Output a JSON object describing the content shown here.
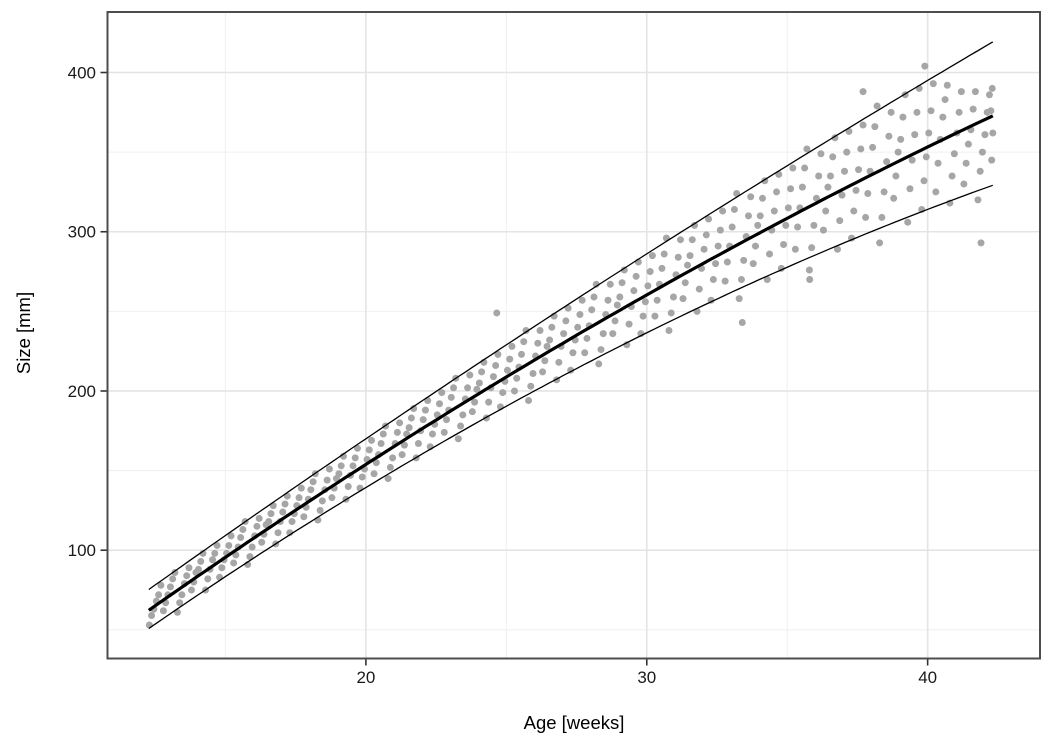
{
  "chart_data": {
    "type": "scatter",
    "title": "",
    "xlabel": "Age [weeks]",
    "ylabel": "Size [mm]",
    "x_domain": [
      10.8,
      44.0
    ],
    "y_domain": [
      32,
      438
    ],
    "x_ticks": [
      20,
      30,
      40
    ],
    "x_minor_ticks": [
      15,
      25,
      35
    ],
    "y_ticks": [
      100,
      200,
      300,
      400
    ],
    "y_minor_ticks": [
      50,
      150,
      250,
      350
    ],
    "grid": true,
    "legend": "none",
    "colors": {
      "point": "#a6a6a6",
      "fit_line": "#000000",
      "band_line": "#000000",
      "grid_major": "#e4e4e4",
      "grid_minor": "#f0f0f0",
      "panel_border": "#4d4d4d",
      "tick_mark": "#333333",
      "tick_label": "#1a1a1a",
      "background": "#ffffff"
    },
    "curves": {
      "note": "quadratic y = a + b*x + c*x^2 in data units, drawn over x domain below",
      "domain": [
        12.27,
        42.32
      ],
      "center": {
        "a": -99.75,
        "b": 14.04,
        "c": -0.0679,
        "width": 3.2
      },
      "upper": {
        "a": -83.8,
        "b": 13.41,
        "c": -0.036,
        "width": 1.3
      },
      "lower": {
        "a": -113.9,
        "b": 14.63,
        "c": -0.0983,
        "width": 1.3
      }
    },
    "points": [
      [
        12.29,
        53
      ],
      [
        12.37,
        59
      ],
      [
        12.45,
        63
      ],
      [
        12.54,
        68
      ],
      [
        12.62,
        72
      ],
      [
        12.7,
        78
      ],
      [
        12.79,
        62
      ],
      [
        12.87,
        67
      ],
      [
        12.95,
        72
      ],
      [
        13.04,
        77
      ],
      [
        13.12,
        82
      ],
      [
        13.2,
        86
      ],
      [
        13.29,
        61
      ],
      [
        13.37,
        67
      ],
      [
        13.45,
        72
      ],
      [
        13.54,
        79
      ],
      [
        13.62,
        84
      ],
      [
        13.7,
        89
      ],
      [
        13.79,
        75
      ],
      [
        13.87,
        80
      ],
      [
        13.95,
        86
      ],
      [
        14.04,
        88
      ],
      [
        14.12,
        93
      ],
      [
        14.2,
        98
      ],
      [
        14.29,
        75
      ],
      [
        14.37,
        82
      ],
      [
        14.45,
        88
      ],
      [
        14.54,
        94
      ],
      [
        14.62,
        98
      ],
      [
        14.7,
        103
      ],
      [
        14.79,
        83
      ],
      [
        14.87,
        89
      ],
      [
        14.95,
        94
      ],
      [
        15.04,
        98
      ],
      [
        15.12,
        103
      ],
      [
        15.2,
        109
      ],
      [
        15.29,
        92
      ],
      [
        15.37,
        97
      ],
      [
        15.45,
        102
      ],
      [
        15.54,
        108
      ],
      [
        15.62,
        113
      ],
      [
        15.7,
        118
      ],
      [
        15.79,
        91
      ],
      [
        15.87,
        96
      ],
      [
        15.95,
        102
      ],
      [
        16.04,
        109
      ],
      [
        16.12,
        115
      ],
      [
        16.2,
        120
      ],
      [
        16.29,
        105
      ],
      [
        16.37,
        110
      ],
      [
        16.45,
        116
      ],
      [
        16.54,
        118
      ],
      [
        16.62,
        123
      ],
      [
        16.7,
        128
      ],
      [
        16.79,
        104
      ],
      [
        16.87,
        111
      ],
      [
        16.95,
        118
      ],
      [
        17.04,
        124
      ],
      [
        17.12,
        129
      ],
      [
        17.2,
        134
      ],
      [
        17.29,
        111
      ],
      [
        17.37,
        118
      ],
      [
        17.45,
        123
      ],
      [
        17.54,
        128
      ],
      [
        17.62,
        133
      ],
      [
        17.7,
        139
      ],
      [
        17.79,
        121
      ],
      [
        17.87,
        127
      ],
      [
        17.95,
        132
      ],
      [
        18.04,
        138
      ],
      [
        18.12,
        143
      ],
      [
        18.2,
        148
      ],
      [
        18.29,
        119
      ],
      [
        18.37,
        125
      ],
      [
        18.45,
        131
      ],
      [
        18.54,
        138
      ],
      [
        18.62,
        144
      ],
      [
        18.7,
        151
      ],
      [
        18.79,
        133
      ],
      [
        18.87,
        139
      ],
      [
        18.95,
        145
      ],
      [
        19.04,
        148
      ],
      [
        19.12,
        153
      ],
      [
        19.2,
        159
      ],
      [
        19.29,
        132
      ],
      [
        19.37,
        140
      ],
      [
        19.45,
        147
      ],
      [
        19.54,
        153
      ],
      [
        19.62,
        158
      ],
      [
        19.7,
        164
      ],
      [
        19.79,
        139
      ],
      [
        19.87,
        146
      ],
      [
        19.95,
        151
      ],
      [
        20.04,
        157
      ],
      [
        20.12,
        163
      ],
      [
        20.2,
        169
      ],
      [
        20.29,
        148
      ],
      [
        20.37,
        155
      ],
      [
        20.45,
        160
      ],
      [
        20.54,
        167
      ],
      [
        20.62,
        173
      ],
      [
        20.7,
        178
      ],
      [
        20.79,
        145
      ],
      [
        20.87,
        152
      ],
      [
        20.95,
        158
      ],
      [
        21.04,
        167
      ],
      [
        21.12,
        174
      ],
      [
        21.2,
        180
      ],
      [
        21.29,
        160
      ],
      [
        21.37,
        166
      ],
      [
        21.45,
        173
      ],
      [
        21.54,
        177
      ],
      [
        21.62,
        183
      ],
      [
        21.7,
        189
      ],
      [
        21.79,
        158
      ],
      [
        21.87,
        167
      ],
      [
        21.95,
        175
      ],
      [
        22.04,
        182
      ],
      [
        22.12,
        188
      ],
      [
        22.2,
        194
      ],
      [
        22.29,
        165
      ],
      [
        22.37,
        173
      ],
      [
        22.45,
        179
      ],
      [
        22.54,
        185
      ],
      [
        22.62,
        192
      ],
      [
        22.7,
        199
      ],
      [
        22.79,
        174
      ],
      [
        22.87,
        182
      ],
      [
        22.95,
        188
      ],
      [
        23.04,
        196
      ],
      [
        23.12,
        202
      ],
      [
        23.2,
        208
      ],
      [
        23.29,
        170
      ],
      [
        23.37,
        178
      ],
      [
        23.45,
        185
      ],
      [
        23.54,
        195
      ],
      [
        23.62,
        202
      ],
      [
        23.7,
        210
      ],
      [
        23.79,
        187
      ],
      [
        23.87,
        193
      ],
      [
        23.95,
        201
      ],
      [
        24.04,
        205
      ],
      [
        24.12,
        212
      ],
      [
        24.2,
        218
      ],
      [
        24.29,
        183
      ],
      [
        24.37,
        193
      ],
      [
        24.45,
        202
      ],
      [
        24.54,
        209
      ],
      [
        24.62,
        216
      ],
      [
        24.7,
        223
      ],
      [
        24.66,
        249
      ],
      [
        24.79,
        190
      ],
      [
        24.87,
        199
      ],
      [
        24.95,
        206
      ],
      [
        25.04,
        213
      ],
      [
        25.12,
        220
      ],
      [
        25.2,
        228
      ],
      [
        25.29,
        200
      ],
      [
        25.37,
        208
      ],
      [
        25.45,
        215
      ],
      [
        25.54,
        223
      ],
      [
        25.62,
        231
      ],
      [
        25.7,
        238
      ],
      [
        25.79,
        194
      ],
      [
        25.87,
        203
      ],
      [
        25.95,
        211
      ],
      [
        26.04,
        222
      ],
      [
        26.12,
        230
      ],
      [
        26.2,
        238
      ],
      [
        26.29,
        212
      ],
      [
        26.37,
        219
      ],
      [
        26.45,
        228
      ],
      [
        26.54,
        232
      ],
      [
        26.62,
        240
      ],
      [
        26.7,
        247
      ],
      [
        26.79,
        207
      ],
      [
        26.87,
        218
      ],
      [
        26.95,
        228
      ],
      [
        27.04,
        236
      ],
      [
        27.12,
        244
      ],
      [
        27.2,
        252
      ],
      [
        27.29,
        213
      ],
      [
        27.37,
        224
      ],
      [
        27.45,
        232
      ],
      [
        27.54,
        240
      ],
      [
        27.62,
        248
      ],
      [
        27.7,
        257
      ],
      [
        27.79,
        224
      ],
      [
        27.87,
        233
      ],
      [
        27.95,
        241
      ],
      [
        28.04,
        251
      ],
      [
        28.12,
        259
      ],
      [
        28.2,
        267
      ],
      [
        28.29,
        217
      ],
      [
        28.37,
        226
      ],
      [
        28.45,
        236
      ],
      [
        28.54,
        248
      ],
      [
        28.62,
        257
      ],
      [
        28.7,
        267
      ],
      [
        28.79,
        236
      ],
      [
        28.87,
        244
      ],
      [
        28.95,
        254
      ],
      [
        29.04,
        259
      ],
      [
        29.12,
        268
      ],
      [
        29.2,
        276
      ],
      [
        29.29,
        229
      ],
      [
        29.37,
        242
      ],
      [
        29.45,
        253
      ],
      [
        29.54,
        263
      ],
      [
        29.62,
        272
      ],
      [
        29.7,
        281
      ],
      [
        29.79,
        236
      ],
      [
        29.87,
        247
      ],
      [
        29.95,
        256
      ],
      [
        30.04,
        266
      ],
      [
        30.12,
        275
      ],
      [
        30.2,
        285
      ],
      [
        30.29,
        247
      ],
      [
        30.37,
        257
      ],
      [
        30.45,
        267
      ],
      [
        30.54,
        277
      ],
      [
        30.62,
        286
      ],
      [
        30.7,
        296
      ],
      [
        30.79,
        238
      ],
      [
        30.87,
        249
      ],
      [
        30.95,
        259
      ],
      [
        31.04,
        273
      ],
      [
        31.12,
        284
      ],
      [
        31.2,
        295
      ],
      [
        31.29,
        258
      ],
      [
        31.37,
        268
      ],
      [
        31.45,
        279
      ],
      [
        31.54,
        285
      ],
      [
        31.62,
        295
      ],
      [
        31.7,
        304
      ],
      [
        31.79,
        250
      ],
      [
        31.87,
        264
      ],
      [
        31.95,
        277
      ],
      [
        32.04,
        289
      ],
      [
        32.12,
        298
      ],
      [
        32.2,
        308
      ],
      [
        32.29,
        257
      ],
      [
        32.37,
        270
      ],
      [
        32.45,
        280
      ],
      [
        32.54,
        291
      ],
      [
        32.62,
        301
      ],
      [
        32.7,
        313
      ],
      [
        32.79,
        269
      ],
      [
        32.87,
        281
      ],
      [
        32.95,
        291
      ],
      [
        33.04,
        303
      ],
      [
        33.12,
        314
      ],
      [
        33.2,
        324
      ],
      [
        33.29,
        258
      ],
      [
        33.37,
        270
      ],
      [
        33.45,
        282
      ],
      [
        33.54,
        297
      ],
      [
        33.62,
        310
      ],
      [
        33.7,
        322
      ],
      [
        33.4,
        243
      ],
      [
        33.79,
        280
      ],
      [
        33.87,
        291
      ],
      [
        33.95,
        304
      ],
      [
        34.04,
        310
      ],
      [
        34.12,
        321
      ],
      [
        34.2,
        332
      ],
      [
        34.29,
        270
      ],
      [
        34.37,
        286
      ],
      [
        34.45,
        301
      ],
      [
        34.54,
        313
      ],
      [
        34.62,
        325
      ],
      [
        34.7,
        336
      ],
      [
        34.79,
        277
      ],
      [
        34.87,
        292
      ],
      [
        34.95,
        304
      ],
      [
        35.04,
        315
      ],
      [
        35.12,
        327
      ],
      [
        35.2,
        340
      ],
      [
        35.29,
        289
      ],
      [
        35.37,
        303
      ],
      [
        35.45,
        315
      ],
      [
        35.54,
        328
      ],
      [
        35.62,
        340
      ],
      [
        35.7,
        352
      ],
      [
        35.8,
        270
      ],
      [
        35.79,
        276
      ],
      [
        35.87,
        290
      ],
      [
        35.95,
        304
      ],
      [
        36.04,
        321
      ],
      [
        36.12,
        335
      ],
      [
        36.2,
        349
      ],
      [
        36.29,
        301
      ],
      [
        36.37,
        313
      ],
      [
        36.45,
        328
      ],
      [
        36.54,
        335
      ],
      [
        36.62,
        347
      ],
      [
        36.7,
        359
      ],
      [
        36.79,
        289
      ],
      [
        36.87,
        307
      ],
      [
        36.95,
        323
      ],
      [
        37.04,
        338
      ],
      [
        37.12,
        350
      ],
      [
        37.2,
        363
      ],
      [
        37.29,
        296
      ],
      [
        37.37,
        313
      ],
      [
        37.45,
        326
      ],
      [
        37.54,
        339
      ],
      [
        37.62,
        352
      ],
      [
        37.7,
        367
      ],
      [
        37.7,
        388
      ],
      [
        37.79,
        309
      ],
      [
        37.87,
        324
      ],
      [
        37.95,
        338
      ],
      [
        38.04,
        353
      ],
      [
        38.12,
        366
      ],
      [
        38.2,
        379
      ],
      [
        38.29,
        293
      ],
      [
        38.37,
        309
      ],
      [
        38.45,
        325
      ],
      [
        38.54,
        344
      ],
      [
        38.62,
        360
      ],
      [
        38.7,
        375
      ],
      [
        38.79,
        321
      ],
      [
        38.87,
        335
      ],
      [
        38.95,
        350
      ],
      [
        39.04,
        358
      ],
      [
        39.12,
        372
      ],
      [
        39.2,
        386
      ],
      [
        39.29,
        306
      ],
      [
        39.37,
        327
      ],
      [
        39.45,
        345
      ],
      [
        39.54,
        361
      ],
      [
        39.62,
        375
      ],
      [
        39.7,
        390
      ],
      [
        39.9,
        404
      ],
      [
        39.79,
        314
      ],
      [
        39.87,
        332
      ],
      [
        39.95,
        347
      ],
      [
        40.04,
        362
      ],
      [
        40.12,
        376
      ],
      [
        40.2,
        393
      ],
      [
        40.29,
        325
      ],
      [
        40.37,
        343
      ],
      [
        40.45,
        358
      ],
      [
        40.54,
        372
      ],
      [
        40.62,
        383
      ],
      [
        40.7,
        392
      ],
      [
        40.79,
        318
      ],
      [
        40.87,
        335
      ],
      [
        40.95,
        349
      ],
      [
        41.04,
        362
      ],
      [
        41.12,
        375
      ],
      [
        41.2,
        388
      ],
      [
        41.29,
        330
      ],
      [
        41.37,
        343
      ],
      [
        41.45,
        355
      ],
      [
        41.54,
        364
      ],
      [
        41.62,
        377
      ],
      [
        41.7,
        388
      ],
      [
        41.9,
        293
      ],
      [
        41.79,
        320
      ],
      [
        41.87,
        338
      ],
      [
        41.95,
        350
      ],
      [
        42.04,
        361
      ],
      [
        42.12,
        375
      ],
      [
        42.2,
        386
      ],
      [
        42.28,
        345
      ],
      [
        42.32,
        362
      ],
      [
        42.25,
        376
      ],
      [
        42.3,
        390
      ]
    ],
    "point_radius": 3.5
  }
}
